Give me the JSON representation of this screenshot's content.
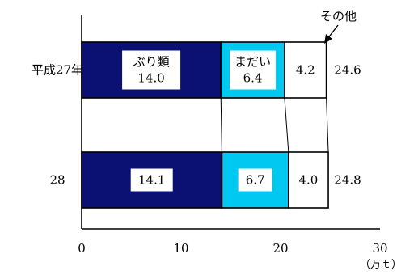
{
  "chart_data": {
    "type": "bar",
    "orientation": "horizontal",
    "stacked": true,
    "categories": [
      "平成27年",
      "28"
    ],
    "series": [
      {
        "name": "ぶり類",
        "values": [
          14.0,
          14.1
        ],
        "color": "#0a1172",
        "label_color": "#ffffff"
      },
      {
        "name": "まだい",
        "values": [
          6.4,
          6.7
        ],
        "color": "#00c8f0",
        "label_color": "#ffffff"
      },
      {
        "name": "その他",
        "values": [
          4.2,
          4.0
        ],
        "color": "#ffffff",
        "label_color": "#ffffff"
      }
    ],
    "totals": [
      "24.6",
      "24.8"
    ],
    "segment_labels": [
      [
        "ぶり類\n14.0",
        "まだい\n6.4",
        "4.2"
      ],
      [
        "14.1",
        "6.7",
        "4.0"
      ]
    ],
    "callout": "その他",
    "xlim": [
      0,
      30
    ],
    "xticks": [
      "0",
      "10",
      "20",
      "30"
    ],
    "xunit": "（万ｔ）",
    "grid": false,
    "connector_lines": true
  }
}
